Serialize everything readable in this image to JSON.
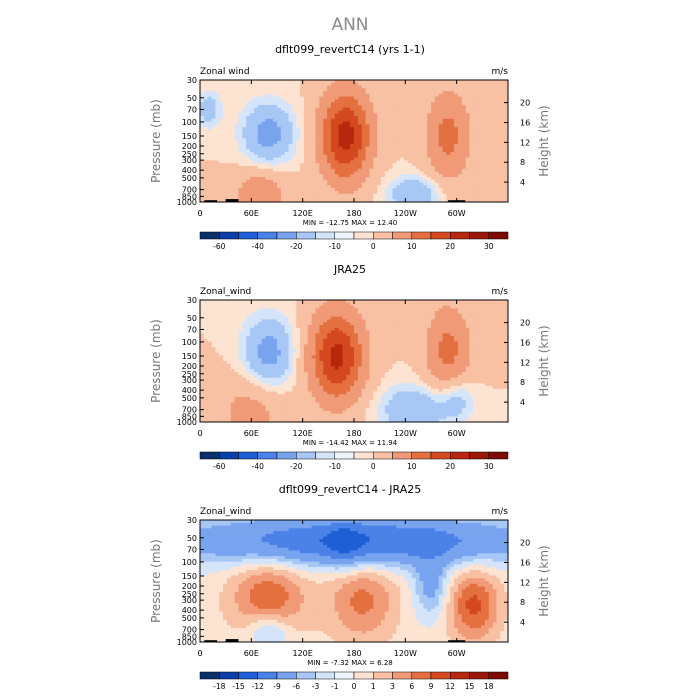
{
  "figure_title": "ANN",
  "contour_colors": [
    "#08306b",
    "#0a3fa8",
    "#1e5fd6",
    "#4a82e8",
    "#78a4ef",
    "#a7c7f5",
    "#d4e5fb",
    "#fde4d2",
    "#f8c1a3",
    "#f19a77",
    "#e5703f",
    "#d4481f",
    "#b8270d",
    "#7f0a00"
  ],
  "land_color": "#000000",
  "chart_data": [
    {
      "type": "contour",
      "panel": "model",
      "title": "dflt099_revertC14 (yrs 1-1)",
      "left_label": "Zonal wind",
      "right_label": "m/s",
      "xlabel": "",
      "ylabel": "Pressure (mb)",
      "y2label": "Height (km)",
      "x_ticks": [
        "0",
        "60E",
        "120E",
        "180",
        "120W",
        "60W"
      ],
      "x_tick_lon": [
        0,
        60,
        120,
        180,
        240,
        300
      ],
      "xlim": [
        0,
        360
      ],
      "y_ticks": [
        "30",
        "50",
        "70",
        "100",
        "150",
        "200",
        "250",
        "300",
        "400",
        "500",
        "700",
        "850",
        "1000"
      ],
      "y_tick_p": [
        30,
        50,
        70,
        100,
        150,
        200,
        250,
        300,
        400,
        500,
        700,
        850,
        1000
      ],
      "ylim": [
        1000,
        30
      ],
      "y2_ticks": [
        "4",
        "8",
        "12",
        "16",
        "20"
      ],
      "y2_tick_km": [
        4,
        8,
        12,
        16,
        20
      ],
      "stats": "MIN = -12.75   MAX =  12.40",
      "min": -12.75,
      "max": 12.4,
      "colorbar_labels": [
        "-60",
        "-40",
        "-20",
        "-10",
        "0",
        "10",
        "20",
        "30"
      ],
      "colorbar_label_slot": [
        1,
        3,
        5,
        7,
        9,
        11,
        13,
        15
      ],
      "colorbar_colors": [
        "#08306b",
        "#0a3fa8",
        "#1e5fd6",
        "#4a82e8",
        "#78a4ef",
        "#a7c7f5",
        "#d4e5fb",
        "#eef4fd",
        "#fde4d2",
        "#f8c1a3",
        "#f19a77",
        "#e5703f",
        "#d4481f",
        "#b8270d",
        "#9a1805",
        "#7f0a00"
      ],
      "features": [
        {
          "lon": 170,
          "p": 150,
          "amp": 12.4,
          "wlon": 28,
          "wp": 0.35
        },
        {
          "lon": 290,
          "p": 150,
          "amp": 6,
          "wlon": 25,
          "wp": 0.35
        },
        {
          "lon": 80,
          "p": 140,
          "amp": -5,
          "wlon": 30,
          "wp": 0.25
        },
        {
          "lon": 250,
          "p": 800,
          "amp": -4,
          "wlon": 30,
          "wp": 0.15
        },
        {
          "lon": 70,
          "p": 800,
          "amp": 4,
          "wlon": 30,
          "wp": 0.2
        },
        {
          "lon": 10,
          "p": 70,
          "amp": -3,
          "wlon": 15,
          "wp": 0.15
        }
      ],
      "land": [
        [
          5,
          20,
          1000,
          950
        ],
        [
          30,
          45,
          1000,
          920
        ],
        [
          290,
          310,
          1000,
          950
        ]
      ]
    },
    {
      "type": "contour",
      "panel": "obs",
      "title": "JRA25",
      "left_label": "Zonal_wind",
      "right_label": "m/s",
      "xlabel": "",
      "ylabel": "Pressure (mb)",
      "y2label": "Height (km)",
      "x_ticks": [
        "0",
        "60E",
        "120E",
        "180",
        "120W",
        "60W"
      ],
      "x_tick_lon": [
        0,
        60,
        120,
        180,
        240,
        300
      ],
      "xlim": [
        0,
        360
      ],
      "y_ticks": [
        "30",
        "50",
        "70",
        "100",
        "150",
        "200",
        "250",
        "300",
        "400",
        "500",
        "700",
        "850",
        "1000"
      ],
      "y_tick_p": [
        30,
        50,
        70,
        100,
        150,
        200,
        250,
        300,
        400,
        500,
        700,
        850,
        1000
      ],
      "ylim": [
        1000,
        30
      ],
      "y2_ticks": [
        "4",
        "8",
        "12",
        "16",
        "20"
      ],
      "y2_tick_km": [
        4,
        8,
        12,
        16,
        20
      ],
      "stats": "MIN = -14.42   MAX =  11.94",
      "min": -14.42,
      "max": 11.94,
      "colorbar_labels": [
        "-60",
        "-40",
        "-20",
        "-10",
        "0",
        "10",
        "20",
        "30"
      ],
      "colorbar_label_slot": [
        1,
        3,
        5,
        7,
        9,
        11,
        13,
        15
      ],
      "colorbar_colors": [
        "#08306b",
        "#0a3fa8",
        "#1e5fd6",
        "#4a82e8",
        "#78a4ef",
        "#a7c7f5",
        "#d4e5fb",
        "#eef4fd",
        "#fde4d2",
        "#f8c1a3",
        "#f19a77",
        "#e5703f",
        "#d4481f",
        "#b8270d",
        "#9a1805",
        "#7f0a00"
      ],
      "features": [
        {
          "lon": 160,
          "p": 150,
          "amp": 11.9,
          "wlon": 30,
          "wp": 0.35
        },
        {
          "lon": 290,
          "p": 130,
          "amp": 6,
          "wlon": 25,
          "wp": 0.35
        },
        {
          "lon": 80,
          "p": 140,
          "amp": -5,
          "wlon": 30,
          "wp": 0.3
        },
        {
          "lon": 250,
          "p": 700,
          "amp": -4,
          "wlon": 40,
          "wp": 0.2
        },
        {
          "lon": 300,
          "p": 500,
          "amp": -3,
          "wlon": 20,
          "wp": 0.2
        },
        {
          "lon": 60,
          "p": 700,
          "amp": 3,
          "wlon": 40,
          "wp": 0.3
        }
      ],
      "land": []
    },
    {
      "type": "contour",
      "panel": "difference",
      "title": "dflt099_revertC14 - JRA25",
      "left_label": "Zonal_wind",
      "right_label": "m/s",
      "xlabel": "",
      "ylabel": "Pressure (mb)",
      "y2label": "Height (km)",
      "x_ticks": [
        "0",
        "60E",
        "120E",
        "180",
        "120W",
        "60W"
      ],
      "x_tick_lon": [
        0,
        60,
        120,
        180,
        240,
        300
      ],
      "xlim": [
        0,
        360
      ],
      "y_ticks": [
        "30",
        "50",
        "70",
        "100",
        "150",
        "200",
        "250",
        "300",
        "400",
        "500",
        "700",
        "850",
        "1000"
      ],
      "y_tick_p": [
        30,
        50,
        70,
        100,
        150,
        200,
        250,
        300,
        400,
        500,
        700,
        850,
        1000
      ],
      "ylim": [
        1000,
        30
      ],
      "y2_ticks": [
        "4",
        "8",
        "12",
        "16",
        "20"
      ],
      "y2_tick_km": [
        4,
        8,
        12,
        16,
        20
      ],
      "stats": "MIN =  -7.32   MAX =   6.28",
      "min": -7.32,
      "max": 6.28,
      "colorbar_labels": [
        "-18",
        "-15",
        "-12",
        "-9",
        "-6",
        "-3",
        "-1",
        "0",
        "1",
        "3",
        "6",
        "9",
        "12",
        "15",
        "18"
      ],
      "colorbar_label_slot": [
        1,
        2,
        3,
        4,
        5,
        6,
        7,
        8,
        9,
        10,
        11,
        12,
        13,
        14,
        15
      ],
      "colorbar_colors": [
        "#08306b",
        "#0a3fa8",
        "#1e5fd6",
        "#4a82e8",
        "#78a4ef",
        "#a7c7f5",
        "#d4e5fb",
        "#eef4fd",
        "#fde4d2",
        "#f8c1a3",
        "#f19a77",
        "#e5703f",
        "#d4481f",
        "#b8270d",
        "#9a1805",
        "#7f0a00"
      ],
      "features": [
        {
          "lon": 180,
          "p": 55,
          "amp": -6.5,
          "wlon": 200,
          "wp": 0.2
        },
        {
          "lon": 170,
          "p": 60,
          "amp": -2,
          "wlon": 20,
          "wp": 0.2
        },
        {
          "lon": 80,
          "p": 280,
          "amp": 3.5,
          "wlon": 45,
          "wp": 0.35
        },
        {
          "lon": 190,
          "p": 300,
          "amp": 3,
          "wlon": 40,
          "wp": 0.35
        },
        {
          "lon": 320,
          "p": 350,
          "amp": 4,
          "wlon": 30,
          "wp": 0.3
        },
        {
          "lon": 80,
          "p": 750,
          "amp": -3,
          "wlon": 25,
          "wp": 0.15
        },
        {
          "lon": 270,
          "p": 200,
          "amp": -3,
          "wlon": 20,
          "wp": 0.25
        }
      ],
      "land": [
        [
          5,
          20,
          1000,
          950
        ],
        [
          30,
          45,
          1000,
          920
        ],
        [
          290,
          310,
          1000,
          950
        ]
      ]
    }
  ]
}
